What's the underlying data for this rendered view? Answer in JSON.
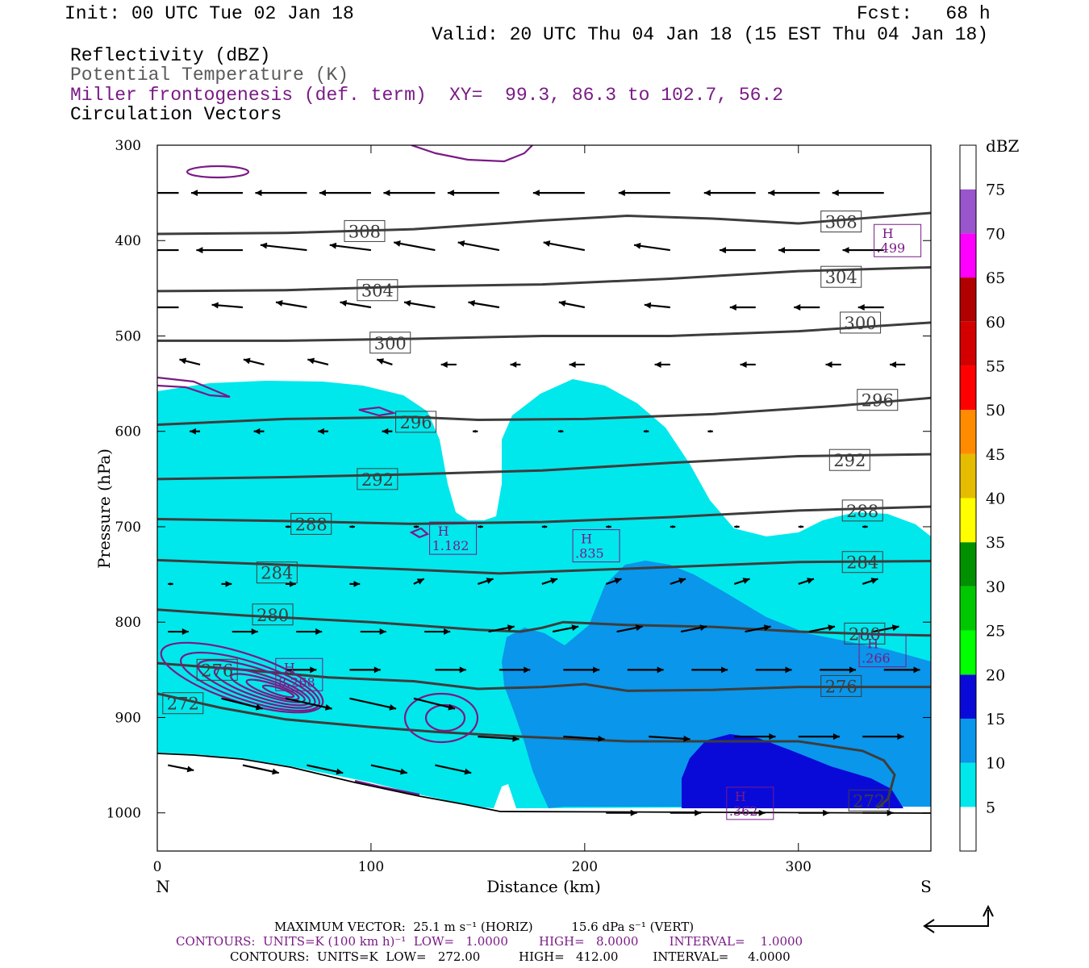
{
  "header": {
    "init": "Init: 00 UTC Tue 02 Jan 18",
    "fcst": "Fcst:   68 h",
    "valid": "Valid: 20 UTC Thu 04 Jan 18 (15 EST Thu 04 Jan 18)",
    "field1": "Reflectivity (dBZ)",
    "field2": "Potential Temperature (K)",
    "field3": "Miller frontogenesis (def. term)",
    "xy": "XY=  99.3, 86.3 to 102.7, 56.2",
    "field4": "Circulation Vectors"
  },
  "footer": {
    "max_vector": "MAXIMUM VECTOR:  25.1 m s⁻¹ (HORIZ)          15.6 dPa s⁻¹ (VERT)",
    "contours_purple": "CONTOURS:  UNITS=K (100 km h)⁻¹  LOW=   1.0000        HIGH=   8.0000        INTERVAL=    1.0000",
    "contours_gray": "CONTOURS:  UNITS=K  LOW=   272.00          HIGH=   412.00         INTERVAL=     4.0000"
  },
  "colors": {
    "frontogenesis": "#7a1a86",
    "theta": "#3d3d3d",
    "dbz_5": "#00e8ec",
    "dbz_10": "#0a96ea",
    "dbz_15": "#0a0ad8"
  },
  "chart_data": {
    "type": "cross-section",
    "xlabel": "Distance (km)",
    "ylabel": "Pressure (hPa)",
    "xlim": [
      0,
      362
    ],
    "ylim": [
      1040,
      300
    ],
    "x_ticks": [
      0,
      100,
      200,
      300
    ],
    "y_ticks": [
      300,
      400,
      500,
      600,
      700,
      800,
      900,
      1000
    ],
    "x_end_labels": {
      "left": "N",
      "right": "S"
    },
    "colorbar": {
      "title": "dBZ",
      "levels": [
        5,
        10,
        15,
        20,
        25,
        30,
        35,
        40,
        45,
        50,
        55,
        60,
        65,
        70,
        75
      ],
      "colors": [
        "#ffffff",
        "#00e8ec",
        "#0a96ea",
        "#0a0ad8",
        "#00ff00",
        "#00c800",
        "#009000",
        "#ffff00",
        "#e6bc00",
        "#ff8c00",
        "#ff0000",
        "#d40000",
        "#b00000",
        "#ff00ff",
        "#9955cc",
        "#ffffff"
      ]
    },
    "theta_contours": [
      {
        "value": 308,
        "points": [
          [
            0,
            393
          ],
          [
            60,
            392
          ],
          [
            120,
            388
          ],
          [
            180,
            379
          ],
          [
            220,
            374
          ],
          [
            260,
            377
          ],
          [
            300,
            382
          ],
          [
            362,
            371
          ]
        ],
        "labels": [
          [
            97,
            390
          ],
          [
            320,
            380
          ]
        ]
      },
      {
        "value": 304,
        "points": [
          [
            0,
            453
          ],
          [
            60,
            452
          ],
          [
            120,
            448
          ],
          [
            180,
            446
          ],
          [
            240,
            440
          ],
          [
            300,
            432
          ],
          [
            362,
            428
          ]
        ],
        "labels": [
          [
            103,
            452
          ],
          [
            320,
            438
          ]
        ]
      },
      {
        "value": 300,
        "points": [
          [
            0,
            505
          ],
          [
            60,
            505
          ],
          [
            120,
            503
          ],
          [
            180,
            500
          ],
          [
            240,
            500
          ],
          [
            300,
            495
          ],
          [
            362,
            486
          ]
        ],
        "labels": [
          [
            109,
            507
          ],
          [
            329,
            486
          ]
        ]
      },
      {
        "value": 296,
        "points": [
          [
            0,
            593
          ],
          [
            60,
            587
          ],
          [
            120,
            585
          ],
          [
            150,
            588
          ],
          [
            200,
            587
          ],
          [
            260,
            582
          ],
          [
            320,
            573
          ],
          [
            362,
            565
          ]
        ],
        "labels": [
          [
            121,
            590
          ],
          [
            337,
            567
          ]
        ]
      },
      {
        "value": 292,
        "points": [
          [
            0,
            650
          ],
          [
            60,
            648
          ],
          [
            120,
            645
          ],
          [
            180,
            641
          ],
          [
            240,
            633
          ],
          [
            300,
            626
          ],
          [
            362,
            624
          ]
        ],
        "labels": [
          [
            103,
            650
          ],
          [
            324,
            630
          ]
        ]
      },
      {
        "value": 288,
        "points": [
          [
            0,
            692
          ],
          [
            60,
            694
          ],
          [
            120,
            697
          ],
          [
            180,
            695
          ],
          [
            240,
            690
          ],
          [
            300,
            683
          ],
          [
            362,
            679
          ]
        ],
        "labels": [
          [
            72,
            697
          ],
          [
            330,
            683
          ]
        ]
      },
      {
        "value": 284,
        "points": [
          [
            0,
            735
          ],
          [
            60,
            740
          ],
          [
            120,
            745
          ],
          [
            160,
            749
          ],
          [
            220,
            744
          ],
          [
            300,
            737
          ],
          [
            362,
            736
          ]
        ],
        "labels": [
          [
            56,
            748
          ],
          [
            330,
            737
          ]
        ]
      },
      {
        "value": 280,
        "points": [
          [
            0,
            787
          ],
          [
            40,
            793
          ],
          [
            100,
            800
          ],
          [
            150,
            808
          ],
          [
            170,
            810
          ],
          [
            180,
            806
          ],
          [
            190,
            800
          ],
          [
            220,
            803
          ],
          [
            260,
            805
          ],
          [
            300,
            810
          ],
          [
            340,
            813
          ],
          [
            362,
            814
          ]
        ],
        "labels": [
          [
            54,
            792
          ],
          [
            331,
            812
          ]
        ]
      },
      {
        "value": 276,
        "points": [
          [
            0,
            843
          ],
          [
            40,
            850
          ],
          [
            80,
            858
          ],
          [
            120,
            862
          ],
          [
            150,
            870
          ],
          [
            180,
            868
          ],
          [
            200,
            865
          ],
          [
            220,
            872
          ],
          [
            260,
            871
          ],
          [
            300,
            868
          ],
          [
            362,
            868
          ]
        ],
        "labels": [
          [
            28,
            850
          ],
          [
            320,
            867
          ]
        ]
      },
      {
        "value": 272,
        "points": [
          [
            0,
            875
          ],
          [
            30,
            890
          ],
          [
            60,
            902
          ],
          [
            100,
            910
          ],
          [
            130,
            915
          ],
          [
            170,
            920
          ],
          [
            220,
            925
          ],
          [
            260,
            925
          ],
          [
            300,
            925
          ],
          [
            330,
            935
          ],
          [
            340,
            945
          ],
          [
            345,
            960
          ],
          [
            342,
            985
          ],
          [
            337,
            995
          ]
        ],
        "labels": [
          [
            12,
            885
          ],
          [
            333,
            987
          ]
        ]
      }
    ],
    "frontogenesis_highs": [
      {
        "x": 66,
        "p": 855,
        "label": "H",
        "value": "8.268"
      },
      {
        "x": 138,
        "p": 712,
        "label": "H",
        "value": "1.182"
      },
      {
        "x": 205,
        "p": 720,
        "label": "H",
        "value": ".835"
      },
      {
        "x": 346,
        "p": 400,
        "label": "H",
        "value": ".499"
      },
      {
        "x": 339,
        "p": 830,
        "label": "H",
        "value": ".266"
      },
      {
        "x": 277,
        "p": 990,
        "label": "H",
        "value": ".362"
      }
    ],
    "circulation_vectors": [
      {
        "p": 350,
        "x": [
          10,
          40,
          70,
          100,
          130,
          160,
          200,
          240,
          280,
          310,
          340
        ],
        "u": [
          -22,
          -20,
          -20,
          -20,
          -20,
          -20,
          -20,
          -20,
          -20,
          -20,
          -20
        ],
        "w": [
          0,
          0,
          0,
          0,
          0,
          0,
          0,
          0,
          0,
          0,
          0
        ]
      },
      {
        "p": 410,
        "x": [
          10,
          40,
          70,
          100,
          130,
          160,
          200,
          240,
          280,
          310,
          340
        ],
        "u": [
          -20,
          -18,
          -18,
          -16,
          -16,
          -16,
          -16,
          -14,
          -14,
          -16,
          -16
        ],
        "w": [
          0,
          0,
          2,
          2,
          3,
          3,
          3,
          2,
          0,
          0,
          0
        ]
      },
      {
        "p": 470,
        "x": [
          10,
          40,
          70,
          100,
          130,
          160,
          200,
          240,
          280,
          310,
          340
        ],
        "u": [
          -14,
          -12,
          -12,
          -12,
          -12,
          -12,
          -10,
          -10,
          -10,
          -10,
          -10
        ],
        "w": [
          0,
          1,
          2,
          2,
          2,
          2,
          2,
          1,
          0,
          0,
          0
        ]
      },
      {
        "p": 530,
        "x": [
          20,
          50,
          80,
          110,
          140,
          170,
          200,
          240,
          280,
          320,
          350
        ],
        "u": [
          -8,
          -8,
          -8,
          -6,
          -6,
          -4,
          -6,
          -6,
          -6,
          -6,
          -6
        ],
        "w": [
          2,
          2,
          2,
          2,
          0,
          0,
          0,
          0,
          0,
          0,
          0
        ]
      },
      {
        "p": 600,
        "x": [
          20,
          50,
          80,
          110,
          150,
          190,
          230,
          260,
          290,
          320
        ],
        "u": [
          -4,
          -4,
          -4,
          -4,
          -2,
          -2,
          -2,
          -2,
          0,
          0
        ],
        "w": [
          0,
          0,
          0,
          0,
          0,
          0,
          0,
          0,
          0,
          0
        ]
      },
      {
        "p": 700,
        "x": [
          60,
          90,
          120,
          150,
          180,
          210,
          240,
          270,
          300,
          330
        ],
        "u": [
          2,
          2,
          2,
          2,
          2,
          2,
          2,
          2,
          2,
          2
        ],
        "w": [
          0,
          0,
          0,
          0,
          0,
          0,
          0,
          0,
          0,
          0
        ]
      },
      {
        "p": 760,
        "x": [
          5,
          30,
          60,
          90,
          120,
          150,
          180,
          210,
          240,
          270,
          300,
          330
        ],
        "u": [
          2,
          4,
          4,
          4,
          4,
          6,
          6,
          6,
          6,
          6,
          6,
          6
        ],
        "w": [
          0,
          0,
          0,
          0,
          2,
          2,
          2,
          2,
          2,
          2,
          2,
          2
        ]
      },
      {
        "p": 810,
        "x": [
          5,
          35,
          65,
          95,
          125,
          155,
          185,
          215,
          245,
          275,
          305,
          335
        ],
        "u": [
          8,
          10,
          10,
          10,
          10,
          10,
          10,
          10,
          10,
          10,
          10,
          10
        ],
        "w": [
          0,
          0,
          0,
          0,
          0,
          2,
          2,
          2,
          2,
          2,
          2,
          2
        ]
      },
      {
        "p": 850,
        "x": [
          60,
          90,
          130,
          160,
          190,
          220,
          250,
          280,
          310,
          340
        ],
        "u": [
          12,
          12,
          12,
          12,
          14,
          14,
          14,
          14,
          14,
          14
        ],
        "w": [
          0,
          0,
          0,
          0,
          0,
          0,
          0,
          0,
          0,
          0
        ]
      },
      {
        "p": 880,
        "x": [
          30,
          60,
          90,
          120
        ],
        "u": [
          16,
          18,
          18,
          16
        ],
        "w": [
          -4,
          -4,
          -4,
          -4
        ]
      },
      {
        "p": 920,
        "x": [
          150,
          190,
          230,
          270,
          300,
          330
        ],
        "u": [
          16,
          16,
          16,
          16,
          16,
          16
        ],
        "w": [
          -1,
          -1,
          -1,
          0,
          0,
          0
        ]
      },
      {
        "p": 950,
        "x": [
          5,
          40,
          70,
          100,
          130
        ],
        "u": [
          10,
          14,
          14,
          14,
          14
        ],
        "w": [
          -2,
          -3,
          -3,
          -3,
          -3
        ]
      },
      {
        "p": 1000,
        "x": [
          210,
          240,
          270,
          300,
          330
        ],
        "u": [
          12,
          12,
          12,
          12,
          12
        ],
        "w": [
          0,
          0,
          0,
          0,
          0
        ]
      }
    ]
  }
}
